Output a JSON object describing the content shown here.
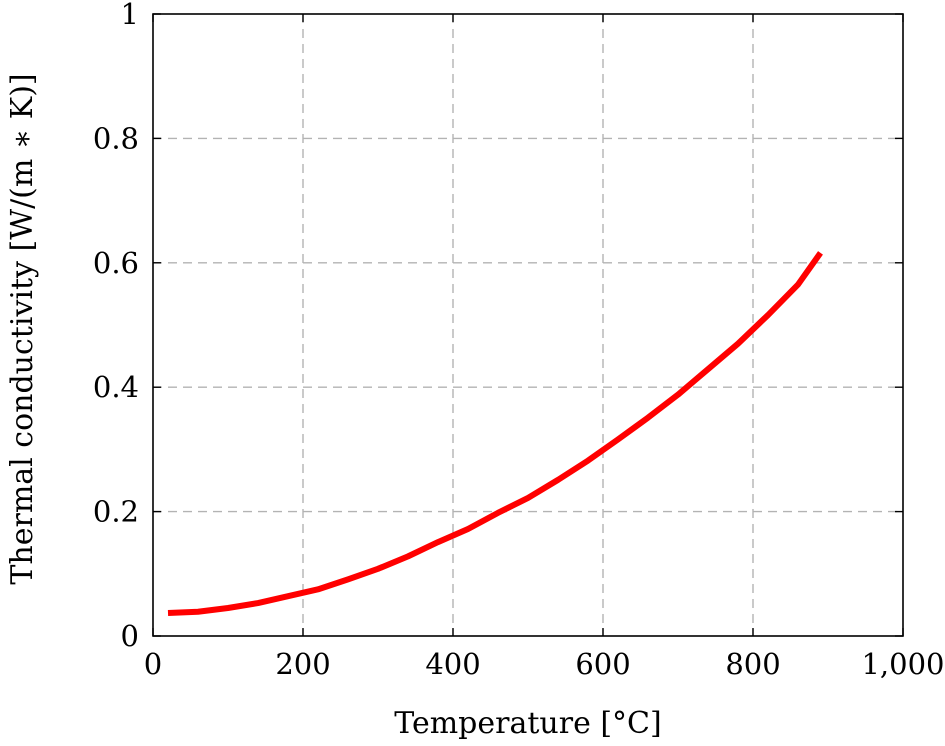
{
  "chart_data": {
    "type": "line",
    "title": "",
    "xlabel": "Temperature [°C]",
    "ylabel": "Thermal conductivity [W/(m ∗ K)]",
    "xlim": [
      0,
      1000
    ],
    "ylim": [
      0,
      1
    ],
    "xticks": [
      0,
      200,
      400,
      600,
      800,
      1000
    ],
    "xtick_labels": [
      "0",
      "200",
      "400",
      "600",
      "800",
      "1,000"
    ],
    "yticks": [
      0,
      0.2,
      0.4,
      0.6,
      0.8,
      1
    ],
    "ytick_labels": [
      "0",
      "0.2",
      "0.4",
      "0.6",
      "0.8",
      "1"
    ],
    "grid": true,
    "series": [
      {
        "color": "#ff0000",
        "x": [
          20,
          60,
          100,
          140,
          180,
          220,
          260,
          300,
          340,
          380,
          420,
          460,
          500,
          540,
          580,
          620,
          660,
          700,
          740,
          780,
          820,
          860,
          890
        ],
        "y": [
          0.037,
          0.039,
          0.045,
          0.053,
          0.064,
          0.075,
          0.091,
          0.108,
          0.128,
          0.151,
          0.172,
          0.198,
          0.222,
          0.251,
          0.282,
          0.316,
          0.351,
          0.388,
          0.429,
          0.47,
          0.516,
          0.565,
          0.616
        ]
      }
    ]
  }
}
